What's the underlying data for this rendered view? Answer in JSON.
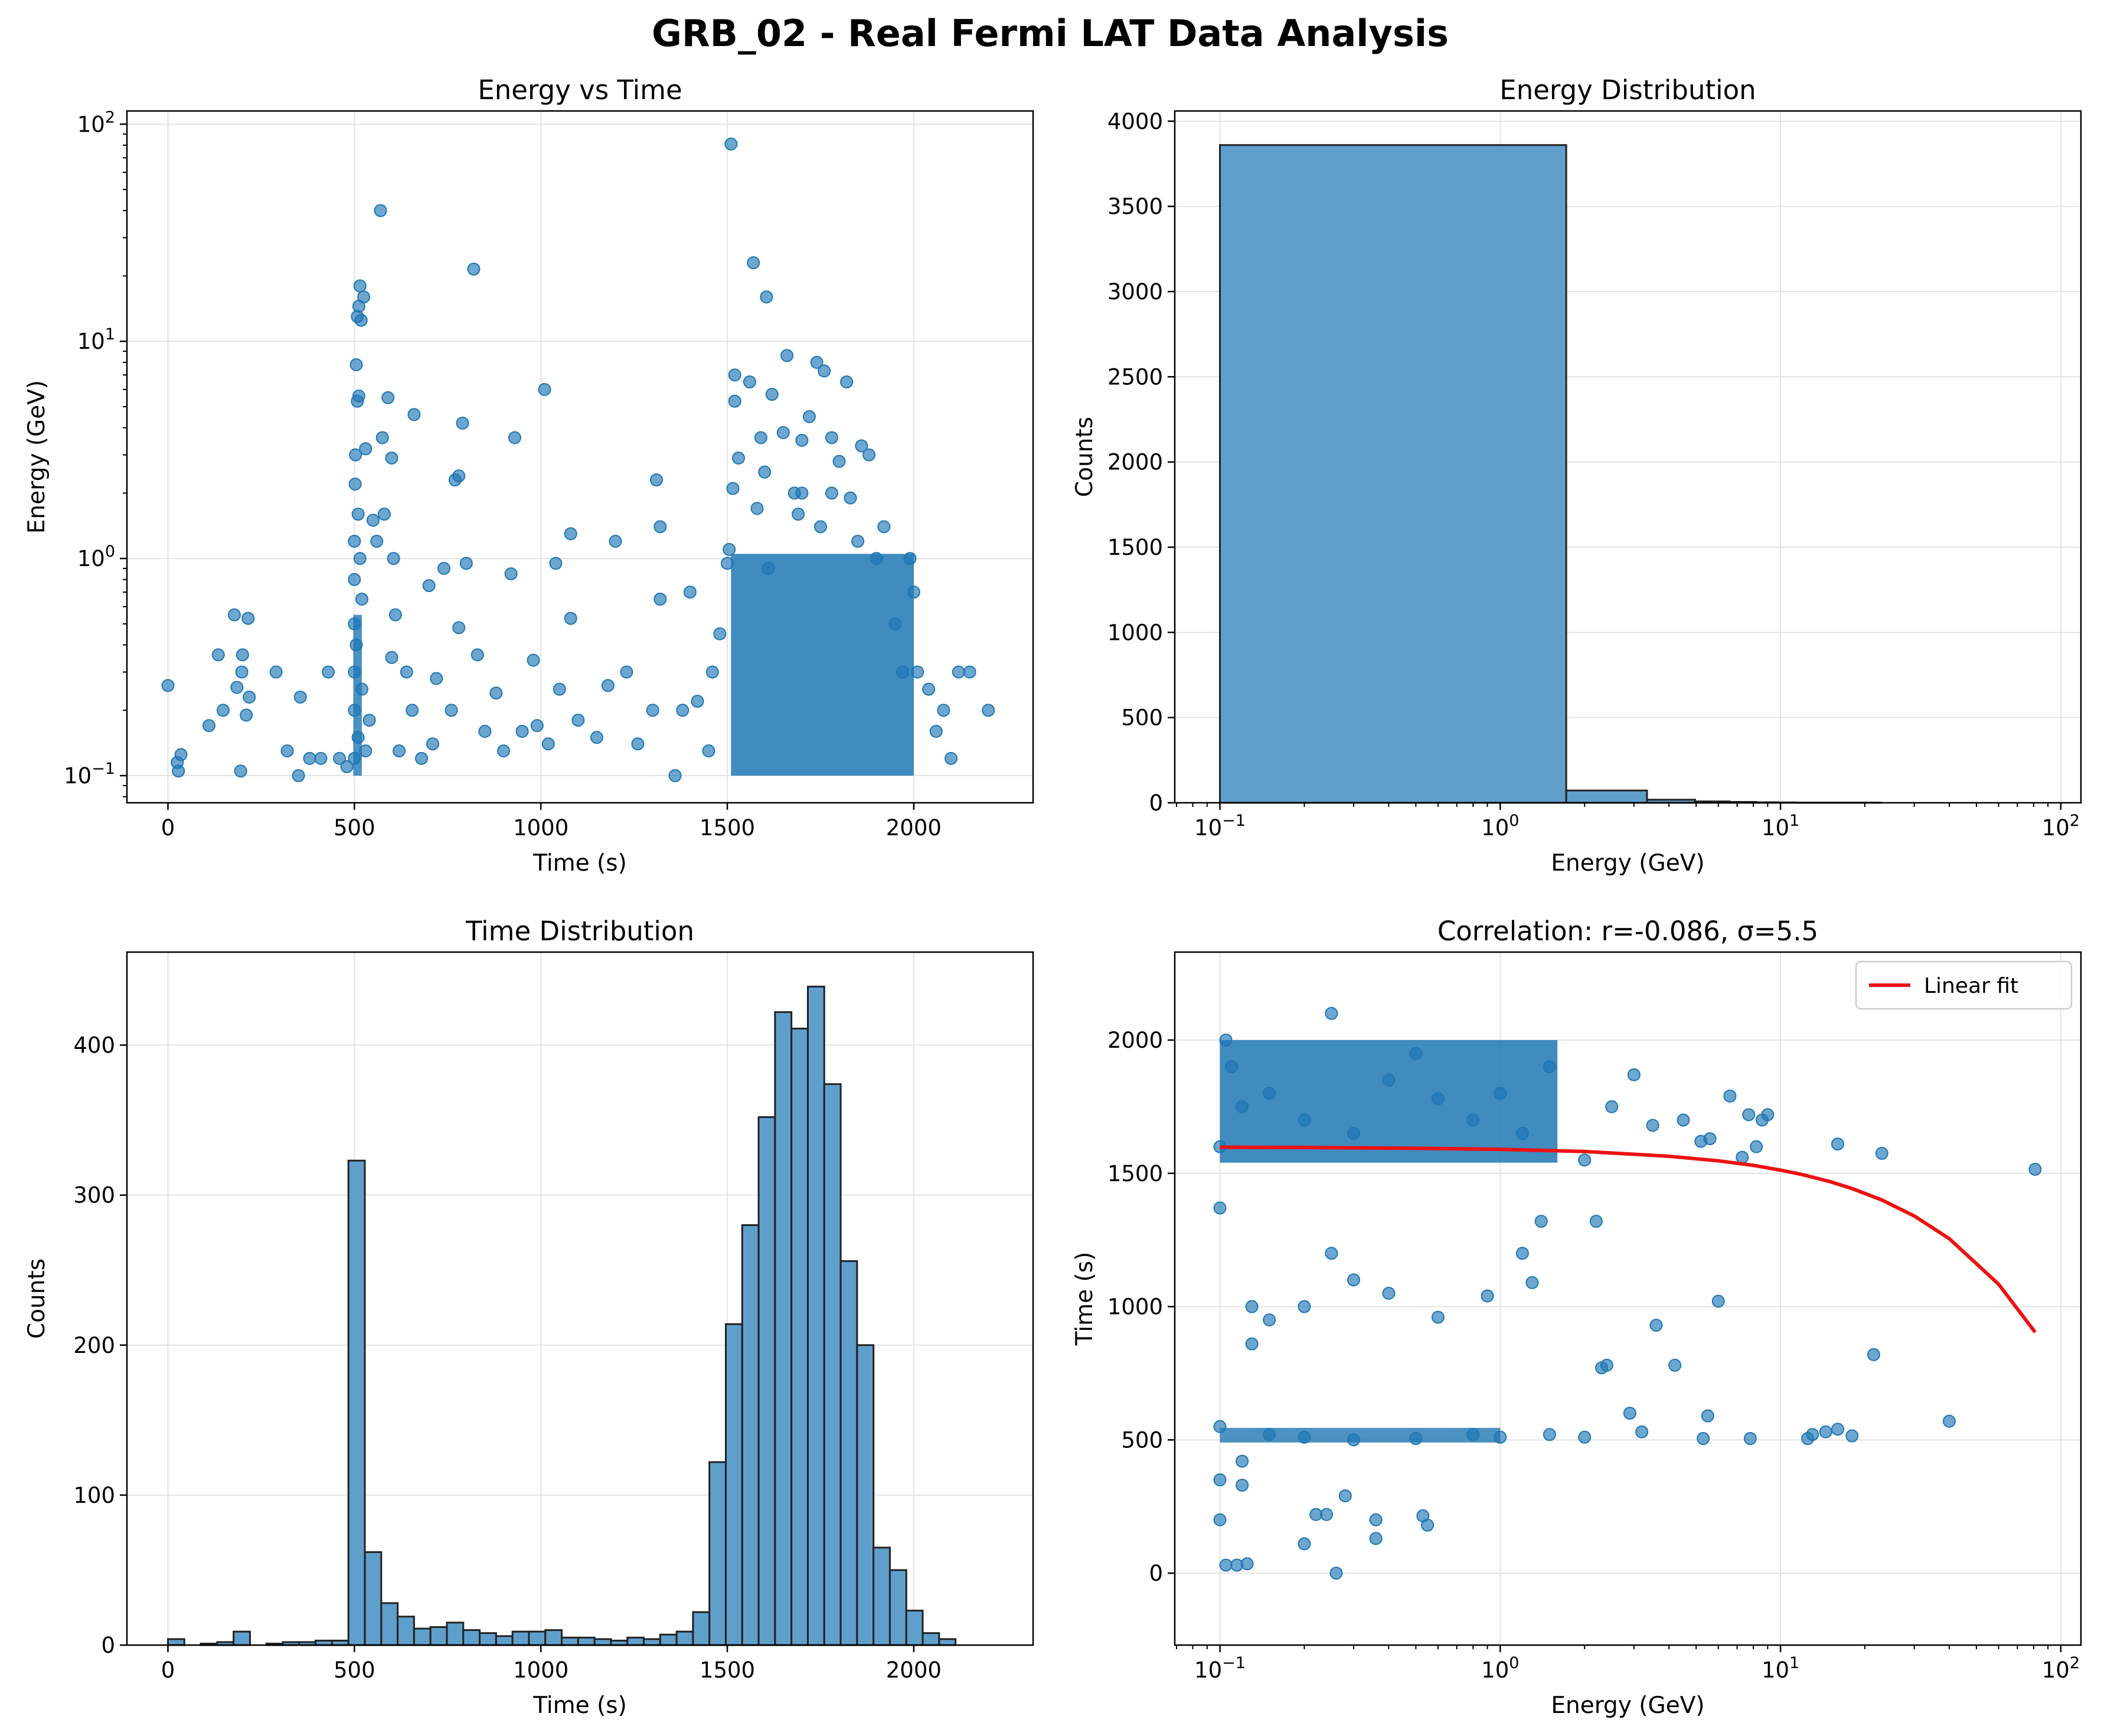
{
  "figure": {
    "title": "GRB_02 - Real Fermi LAT Data Analysis"
  },
  "colors": {
    "points": "#1f77b4",
    "bars": "#5f9fcc",
    "bar_edge": "#222222",
    "fit_line": "#ee1111",
    "grid": "#e3e3e3"
  },
  "chart_data": [
    {
      "id": "energy_vs_time",
      "type": "scatter",
      "title": "Energy vs Time",
      "xlabel": "Time (s)",
      "ylabel": "Energy (GeV)",
      "xscale": "linear",
      "yscale": "log",
      "xlim": [
        -110,
        2320
      ],
      "ylim": [
        0.075,
        115
      ],
      "xticks": [
        0,
        500,
        1000,
        1500,
        2000
      ],
      "xtick_labels": [
        "0",
        "500",
        "1000",
        "1500",
        "2000"
      ],
      "yticks": [
        0.1,
        1,
        10,
        100
      ],
      "ytick_labels": [
        "10^-1",
        "10^0",
        "10^1",
        "10^2"
      ],
      "grid": true,
      "point_density_note": "dense clusters near t=500 s and t=1500-2200 s at E=0.1-1 GeV",
      "points": [
        [
          0,
          0.26
        ],
        [
          25,
          0.115
        ],
        [
          28,
          0.105
        ],
        [
          35,
          0.125
        ],
        [
          110,
          0.17
        ],
        [
          135,
          0.36
        ],
        [
          148,
          0.2
        ],
        [
          178,
          0.55
        ],
        [
          185,
          0.255
        ],
        [
          195,
          0.105
        ],
        [
          198,
          0.3
        ],
        [
          200,
          0.36
        ],
        [
          210,
          0.19
        ],
        [
          215,
          0.53
        ],
        [
          218,
          0.23
        ],
        [
          290,
          0.3
        ],
        [
          320,
          0.13
        ],
        [
          350,
          0.1
        ],
        [
          355,
          0.23
        ],
        [
          380,
          0.12
        ],
        [
          410,
          0.12
        ],
        [
          430,
          0.3
        ],
        [
          460,
          0.12
        ],
        [
          480,
          0.11
        ],
        [
          500,
          0.12
        ],
        [
          500,
          0.2
        ],
        [
          500,
          0.3
        ],
        [
          500,
          0.5
        ],
        [
          500,
          0.8
        ],
        [
          500,
          1.2
        ],
        [
          502,
          2.2
        ],
        [
          503,
          3.0
        ],
        [
          505,
          7.8
        ],
        [
          508,
          13.0
        ],
        [
          512,
          14.5
        ],
        [
          515,
          18.0
        ],
        [
          518,
          12.5
        ],
        [
          525,
          16.0
        ],
        [
          530,
          3.2
        ],
        [
          508,
          5.3
        ],
        [
          512,
          5.6
        ],
        [
          510,
          1.6
        ],
        [
          515,
          1.0
        ],
        [
          520,
          0.65
        ],
        [
          505,
          0.4
        ],
        [
          510,
          0.15
        ],
        [
          520,
          0.25
        ],
        [
          530,
          0.13
        ],
        [
          540,
          0.18
        ],
        [
          550,
          1.5
        ],
        [
          560,
          1.2
        ],
        [
          570,
          40.0
        ],
        [
          575,
          3.6
        ],
        [
          580,
          1.6
        ],
        [
          590,
          5.5
        ],
        [
          600,
          2.9
        ],
        [
          600,
          0.35
        ],
        [
          605,
          1.0
        ],
        [
          610,
          0.55
        ],
        [
          620,
          0.13
        ],
        [
          640,
          0.3
        ],
        [
          655,
          0.2
        ],
        [
          660,
          4.6
        ],
        [
          680,
          0.12
        ],
        [
          700,
          0.75
        ],
        [
          710,
          0.14
        ],
        [
          720,
          0.28
        ],
        [
          740,
          0.9
        ],
        [
          760,
          0.2
        ],
        [
          770,
          2.3
        ],
        [
          780,
          2.4
        ],
        [
          780,
          0.48
        ],
        [
          790,
          4.2
        ],
        [
          800,
          0.95
        ],
        [
          820,
          21.5
        ],
        [
          830,
          0.36
        ],
        [
          850,
          0.16
        ],
        [
          880,
          0.24
        ],
        [
          900,
          0.13
        ],
        [
          920,
          0.85
        ],
        [
          930,
          3.6
        ],
        [
          950,
          0.16
        ],
        [
          980,
          0.34
        ],
        [
          990,
          0.17
        ],
        [
          1010,
          6.0
        ],
        [
          1020,
          0.14
        ],
        [
          1040,
          0.95
        ],
        [
          1050,
          0.25
        ],
        [
          1080,
          1.3
        ],
        [
          1080,
          0.53
        ],
        [
          1100,
          0.18
        ],
        [
          1150,
          0.15
        ],
        [
          1180,
          0.26
        ],
        [
          1200,
          1.2
        ],
        [
          1230,
          0.3
        ],
        [
          1260,
          0.14
        ],
        [
          1300,
          0.2
        ],
        [
          1310,
          2.3
        ],
        [
          1320,
          0.65
        ],
        [
          1320,
          1.4
        ],
        [
          1360,
          0.1
        ],
        [
          1380,
          0.2
        ],
        [
          1400,
          0.7
        ],
        [
          1420,
          0.22
        ],
        [
          1450,
          0.13
        ],
        [
          1460,
          0.3
        ],
        [
          1480,
          0.45
        ],
        [
          1500,
          0.95
        ],
        [
          1505,
          1.1
        ],
        [
          1510,
          81.0
        ],
        [
          1515,
          2.1
        ],
        [
          1520,
          5.3
        ],
        [
          1520,
          7.0
        ],
        [
          1530,
          2.9
        ],
        [
          1560,
          6.5
        ],
        [
          1570,
          23.0
        ],
        [
          1580,
          1.7
        ],
        [
          1590,
          3.6
        ],
        [
          1600,
          2.5
        ],
        [
          1605,
          16.0
        ],
        [
          1610,
          0.9
        ],
        [
          1620,
          5.7
        ],
        [
          1650,
          3.8
        ],
        [
          1660,
          8.6
        ],
        [
          1680,
          2.0
        ],
        [
          1690,
          1.6
        ],
        [
          1700,
          3.5
        ],
        [
          1700,
          2.0
        ],
        [
          1720,
          4.5
        ],
        [
          1740,
          8.0
        ],
        [
          1750,
          1.4
        ],
        [
          1760,
          7.3
        ],
        [
          1780,
          3.6
        ],
        [
          1780,
          2.0
        ],
        [
          1800,
          2.8
        ],
        [
          1820,
          6.5
        ],
        [
          1830,
          1.9
        ],
        [
          1850,
          1.2
        ],
        [
          1860,
          3.3
        ],
        [
          1880,
          3.0
        ],
        [
          1900,
          1.0
        ],
        [
          1920,
          1.4
        ],
        [
          1950,
          0.5
        ],
        [
          1970,
          0.3
        ],
        [
          1990,
          1.0
        ],
        [
          2000,
          0.7
        ],
        [
          2010,
          0.3
        ],
        [
          2040,
          0.25
        ],
        [
          2060,
          0.16
        ],
        [
          2080,
          0.2
        ],
        [
          2100,
          0.12
        ],
        [
          2120,
          0.3
        ],
        [
          2150,
          0.3
        ],
        [
          2200,
          0.2
        ]
      ]
    },
    {
      "id": "energy_distribution",
      "type": "bar",
      "title": "Energy Distribution",
      "xlabel": "Energy (GeV)",
      "ylabel": "Counts",
      "xscale": "log",
      "yscale": "linear",
      "xlim": [
        0.069,
        118
      ],
      "ylim": [
        0,
        4060
      ],
      "xticks": [
        0.1,
        1,
        10,
        100
      ],
      "xtick_labels": [
        "10^-1",
        "10^0",
        "10^1",
        "10^2"
      ],
      "yticks": [
        0,
        500,
        1000,
        1500,
        2000,
        2500,
        3000,
        3500,
        4000
      ],
      "ytick_labels": [
        "0",
        "500",
        "1000",
        "1500",
        "2000",
        "2500",
        "3000",
        "3500",
        "4000"
      ],
      "grid": true,
      "bin_edges": [
        0.1,
        1.72,
        3.34,
        4.96,
        6.58,
        8.2,
        9.82,
        11.44,
        13.06,
        14.68,
        16.3,
        17.92,
        19.54,
        21.16,
        22.78
      ],
      "values": [
        3860,
        72,
        18,
        8,
        5,
        3,
        2,
        1,
        1,
        1,
        1,
        1,
        1,
        1
      ]
    },
    {
      "id": "time_distribution",
      "type": "bar",
      "title": "Time Distribution",
      "xlabel": "Time (s)",
      "ylabel": "Counts",
      "xscale": "linear",
      "yscale": "linear",
      "xlim": [
        -110,
        2320
      ],
      "ylim": [
        0,
        462
      ],
      "xticks": [
        0,
        500,
        1000,
        1500,
        2000
      ],
      "xtick_labels": [
        "0",
        "500",
        "1000",
        "1500",
        "2000"
      ],
      "yticks": [
        0,
        100,
        200,
        300,
        400
      ],
      "ytick_labels": [
        "0",
        "100",
        "200",
        "300",
        "400"
      ],
      "grid": true,
      "bin_start": 0,
      "bin_width": 44,
      "values": [
        4,
        0,
        1,
        2,
        9,
        0,
        1,
        2,
        2,
        3,
        3,
        323,
        62,
        28,
        19,
        11,
        12,
        15,
        10,
        8,
        6,
        9,
        9,
        10,
        5,
        5,
        4,
        3,
        5,
        4,
        7,
        9,
        22,
        122,
        214,
        280,
        352,
        422,
        411,
        439,
        374,
        256,
        200,
        65,
        50,
        23,
        8,
        4
      ]
    },
    {
      "id": "correlation",
      "type": "scatter",
      "title": "Correlation: r=-0.086, σ=5.5",
      "xlabel": "Energy (GeV)",
      "ylabel": "Time (s)",
      "xscale": "log",
      "yscale": "linear",
      "xlim": [
        0.069,
        118
      ],
      "ylim": [
        -270,
        2330
      ],
      "xticks": [
        0.1,
        1,
        10,
        100
      ],
      "xtick_labels": [
        "10^-1",
        "10^0",
        "10^1",
        "10^2"
      ],
      "yticks": [
        0,
        500,
        1000,
        1500,
        2000
      ],
      "ytick_labels": [
        "0",
        "500",
        "1000",
        "1500",
        "2000"
      ],
      "grid": true,
      "legend": {
        "location": "upper right",
        "entries": [
          "Linear fit"
        ]
      },
      "points": [
        [
          0.1,
          1370
        ],
        [
          0.1,
          1600
        ],
        [
          0.105,
          2000
        ],
        [
          0.11,
          1900
        ],
        [
          0.12,
          1750
        ],
        [
          0.15,
          1800
        ],
        [
          0.2,
          1700
        ],
        [
          0.25,
          2100
        ],
        [
          0.3,
          1650
        ],
        [
          0.4,
          1850
        ],
        [
          0.5,
          1950
        ],
        [
          0.6,
          1780
        ],
        [
          0.8,
          1700
        ],
        [
          1.0,
          1800
        ],
        [
          1.2,
          1650
        ],
        [
          1.5,
          1900
        ],
        [
          2.0,
          1550
        ],
        [
          2.5,
          1750
        ],
        [
          3.0,
          1870
        ],
        [
          3.5,
          1680
        ],
        [
          4.5,
          1700
        ],
        [
          5.2,
          1620
        ],
        [
          5.6,
          1630
        ],
        [
          6.6,
          1790
        ],
        [
          7.3,
          1560
        ],
        [
          7.7,
          1720
        ],
        [
          8.2,
          1600
        ],
        [
          8.6,
          1700
        ],
        [
          9.0,
          1720
        ],
        [
          16.0,
          1610
        ],
        [
          23.0,
          1575
        ],
        [
          81.0,
          1515
        ],
        [
          0.105,
          30
        ],
        [
          0.115,
          30
        ],
        [
          0.125,
          35
        ],
        [
          0.1,
          200
        ],
        [
          0.1,
          350
        ],
        [
          0.12,
          420
        ],
        [
          0.12,
          330
        ],
        [
          0.26,
          0
        ],
        [
          0.2,
          110
        ],
        [
          0.22,
          220
        ],
        [
          0.24,
          220
        ],
        [
          0.28,
          290
        ],
        [
          0.36,
          200
        ],
        [
          0.36,
          130
        ],
        [
          0.53,
          215
        ],
        [
          0.55,
          180
        ],
        [
          0.13,
          1000
        ],
        [
          0.13,
          860
        ],
        [
          0.15,
          950
        ],
        [
          0.2,
          1000
        ],
        [
          0.25,
          1200
        ],
        [
          0.3,
          1100
        ],
        [
          0.4,
          1050
        ],
        [
          0.6,
          960
        ],
        [
          0.9,
          1040
        ],
        [
          1.2,
          1200
        ],
        [
          1.3,
          1090
        ],
        [
          2.2,
          1320
        ],
        [
          1.4,
          1320
        ],
        [
          6.0,
          1020
        ],
        [
          3.6,
          930
        ],
        [
          4.2,
          780
        ],
        [
          2.4,
          780
        ],
        [
          2.3,
          770
        ],
        [
          21.5,
          820
        ],
        [
          40.0,
          570
        ],
        [
          0.1,
          550
        ],
        [
          0.15,
          520
        ],
        [
          0.2,
          510
        ],
        [
          0.3,
          500
        ],
        [
          0.5,
          505
        ],
        [
          0.8,
          520
        ],
        [
          1.0,
          510
        ],
        [
          1.5,
          520
        ],
        [
          2.0,
          510
        ],
        [
          2.9,
          600
        ],
        [
          3.2,
          530
        ],
        [
          5.5,
          590
        ],
        [
          5.3,
          505
        ],
        [
          7.8,
          505
        ],
        [
          12.5,
          505
        ],
        [
          13.0,
          520
        ],
        [
          14.5,
          530
        ],
        [
          16.0,
          540
        ],
        [
          18.0,
          515
        ]
      ],
      "fit_line": {
        "name": "Linear fit",
        "x": [
          0.1,
          0.2,
          0.5,
          1.0,
          2.0,
          4.0,
          6.0,
          8.0,
          10.0,
          12.0,
          15.0,
          18.0,
          23.0,
          30.0,
          40.0,
          60.0,
          81.0
        ],
        "y": [
          1598,
          1597,
          1594,
          1590,
          1582,
          1564,
          1547,
          1530,
          1512,
          1495,
          1469,
          1443,
          1400,
          1340,
          1255,
          1084,
          904
        ]
      }
    }
  ]
}
